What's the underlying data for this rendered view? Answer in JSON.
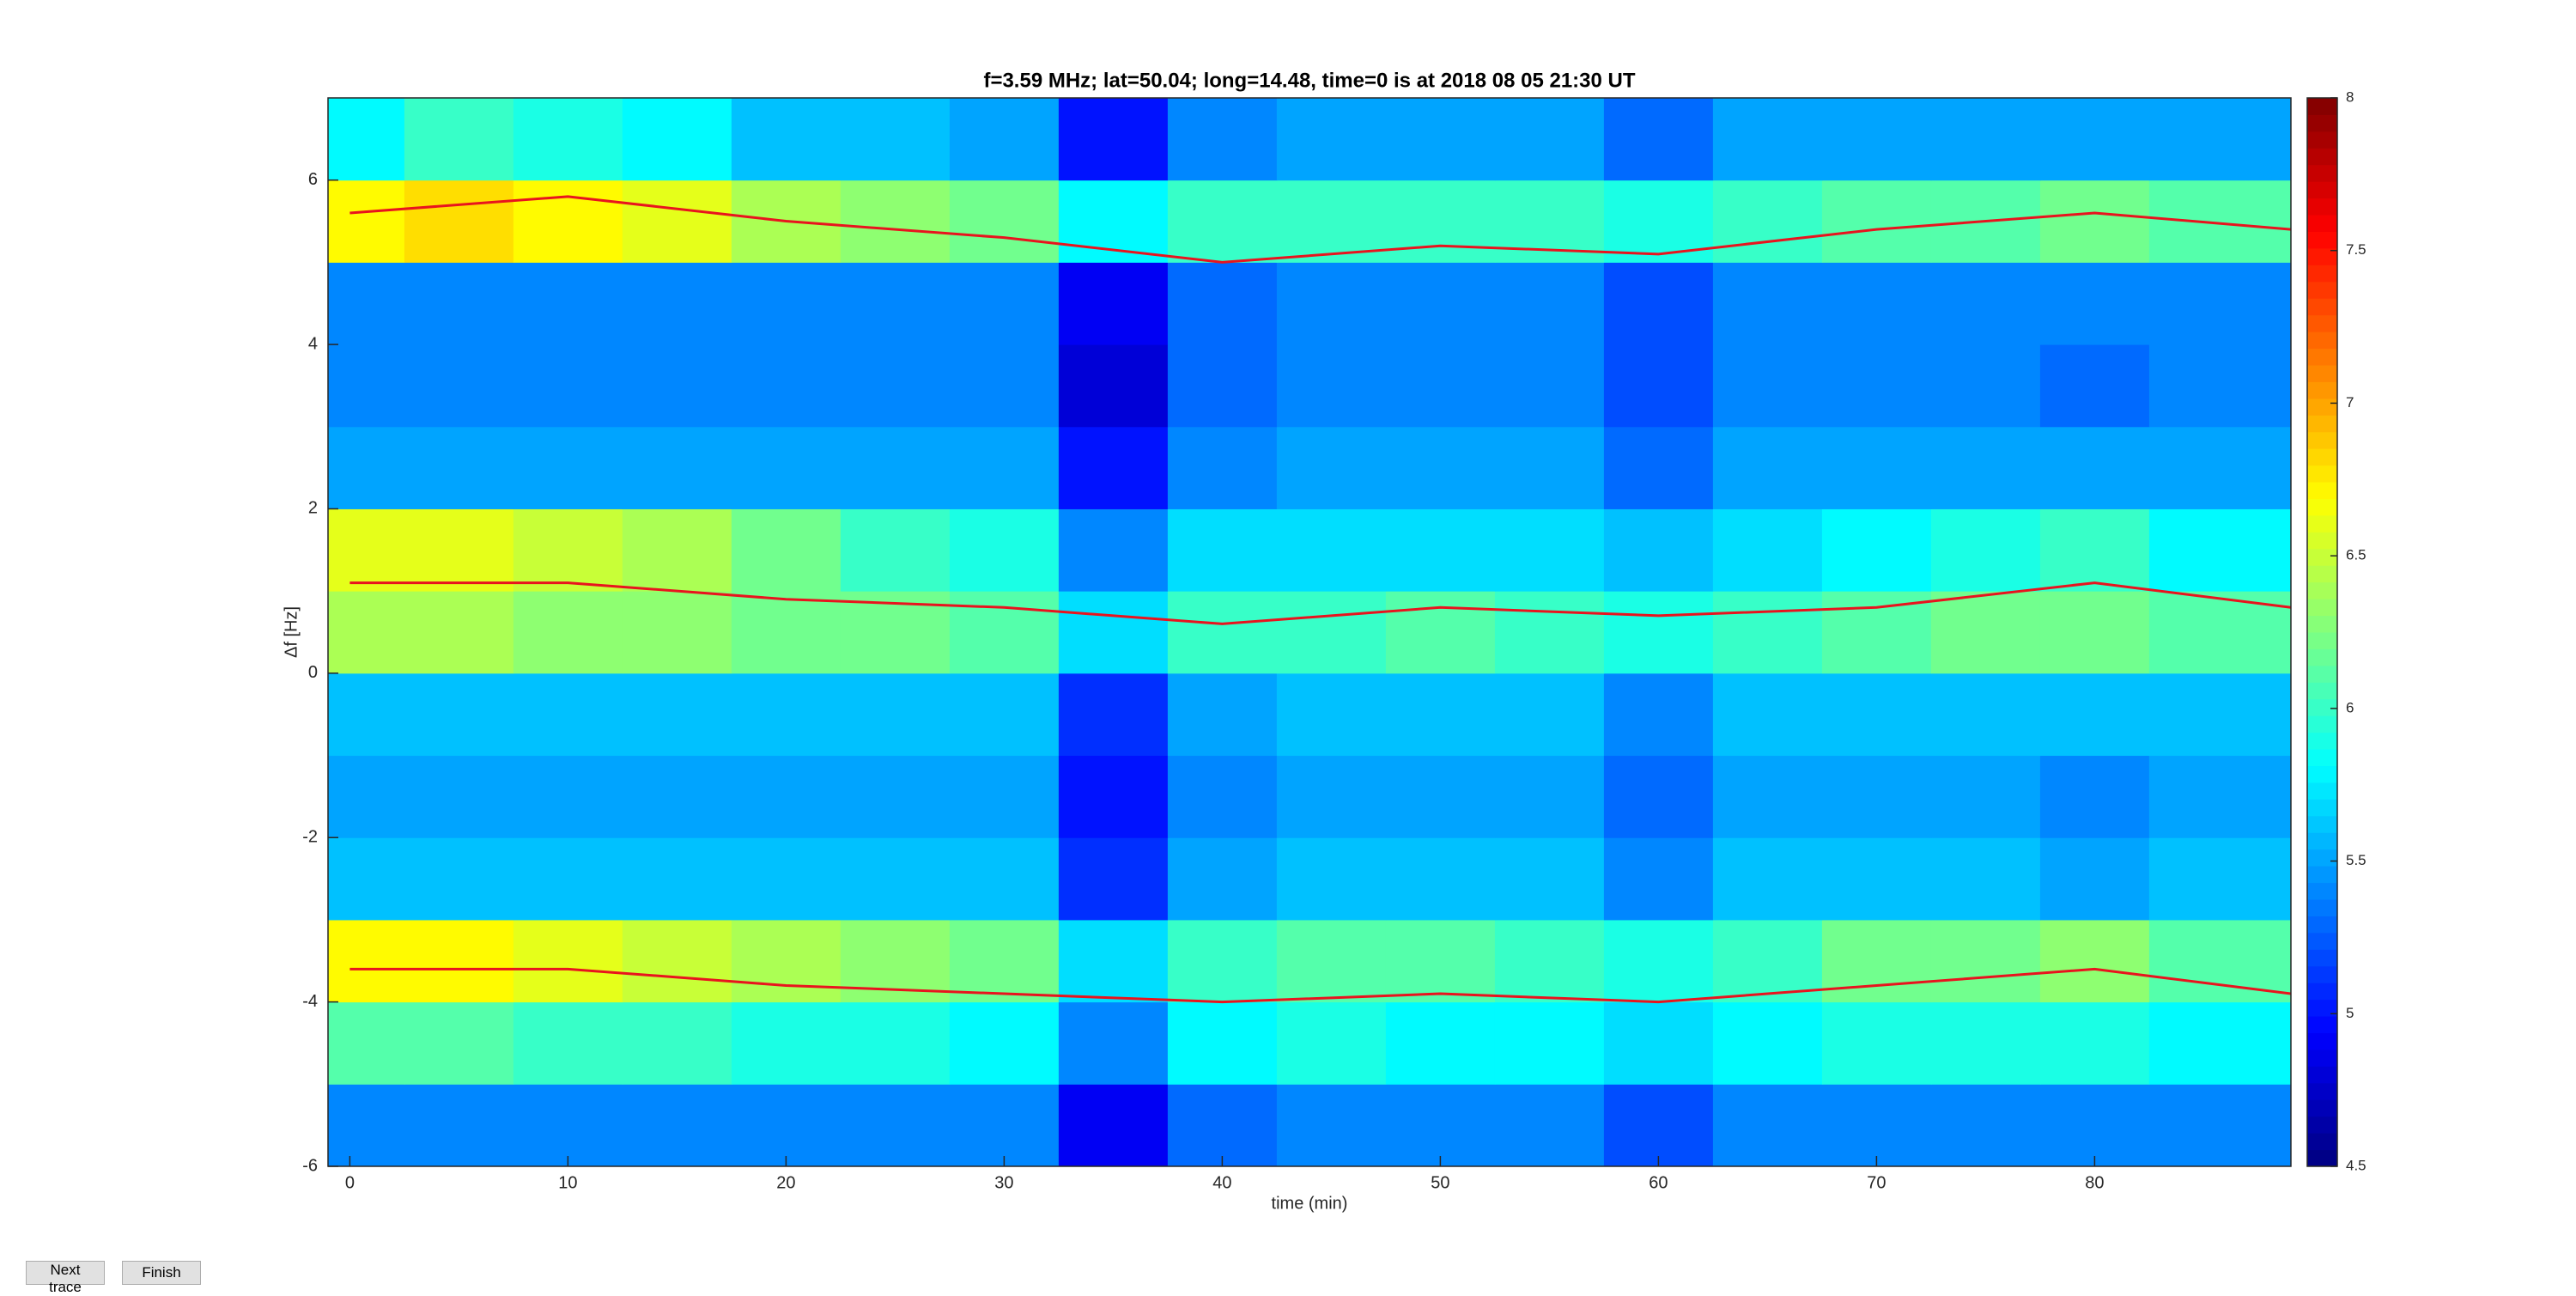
{
  "chart_data": {
    "type": "heatmap",
    "title": "f=3.59 MHz;  lat=50.04; long=14.48, time=0 is at 2018 08 05 21:30 UT",
    "xlabel": "time (min)",
    "ylabel": "Δf [Hz]",
    "x": [
      0,
      5,
      10,
      15,
      20,
      25,
      30,
      35,
      40,
      45,
      50,
      55,
      60,
      65,
      70,
      75,
      80,
      85
    ],
    "y": [
      -5.5,
      -4.5,
      -3.5,
      -2.5,
      -1.5,
      -0.5,
      0.5,
      1.5,
      2.5,
      3.5,
      4.5,
      5.5,
      6.5
    ],
    "z": [
      [
        5.4,
        5.4,
        5.4,
        5.4,
        5.4,
        5.4,
        5.4,
        4.9,
        5.3,
        5.4,
        5.4,
        5.4,
        5.2,
        5.4,
        5.4,
        5.4,
        5.4,
        5.4
      ],
      [
        6.1,
        6.1,
        6.0,
        6.0,
        5.9,
        5.9,
        5.8,
        5.4,
        5.8,
        5.9,
        5.8,
        5.8,
        5.7,
        5.8,
        5.9,
        5.9,
        5.9,
        5.8
      ],
      [
        6.7,
        6.7,
        6.6,
        6.5,
        6.4,
        6.3,
        6.2,
        5.7,
        6.0,
        6.1,
        6.1,
        6.0,
        5.9,
        6.0,
        6.2,
        6.2,
        6.3,
        6.1
      ],
      [
        5.6,
        5.6,
        5.6,
        5.6,
        5.6,
        5.6,
        5.6,
        5.1,
        5.5,
        5.6,
        5.6,
        5.6,
        5.4,
        5.6,
        5.6,
        5.6,
        5.5,
        5.6
      ],
      [
        5.5,
        5.5,
        5.5,
        5.5,
        5.5,
        5.5,
        5.5,
        5.0,
        5.4,
        5.5,
        5.5,
        5.5,
        5.3,
        5.5,
        5.5,
        5.5,
        5.4,
        5.5
      ],
      [
        5.6,
        5.6,
        5.6,
        5.6,
        5.6,
        5.6,
        5.6,
        5.1,
        5.5,
        5.6,
        5.6,
        5.6,
        5.4,
        5.6,
        5.6,
        5.6,
        5.6,
        5.6
      ],
      [
        6.4,
        6.4,
        6.3,
        6.3,
        6.2,
        6.2,
        6.1,
        5.7,
        6.0,
        6.0,
        6.1,
        6.0,
        5.9,
        6.0,
        6.1,
        6.2,
        6.2,
        6.1
      ],
      [
        6.6,
        6.6,
        6.5,
        6.4,
        6.2,
        6.0,
        5.9,
        5.4,
        5.7,
        5.7,
        5.7,
        5.7,
        5.6,
        5.7,
        5.8,
        5.9,
        6.0,
        5.8
      ],
      [
        5.5,
        5.5,
        5.5,
        5.5,
        5.5,
        5.5,
        5.5,
        5.0,
        5.4,
        5.5,
        5.5,
        5.5,
        5.3,
        5.5,
        5.5,
        5.5,
        5.5,
        5.5
      ],
      [
        5.4,
        5.4,
        5.4,
        5.4,
        5.4,
        5.4,
        5.4,
        4.8,
        5.3,
        5.4,
        5.4,
        5.4,
        5.2,
        5.4,
        5.4,
        5.4,
        5.3,
        5.4
      ],
      [
        5.4,
        5.4,
        5.4,
        5.4,
        5.4,
        5.4,
        5.4,
        4.9,
        5.3,
        5.4,
        5.4,
        5.4,
        5.2,
        5.4,
        5.4,
        5.4,
        5.4,
        5.4
      ],
      [
        6.7,
        6.8,
        6.7,
        6.6,
        6.4,
        6.3,
        6.2,
        5.8,
        6.0,
        6.0,
        6.0,
        6.0,
        5.9,
        6.0,
        6.1,
        6.1,
        6.2,
        6.1
      ],
      [
        5.8,
        6.0,
        5.9,
        5.8,
        5.6,
        5.6,
        5.5,
        5.0,
        5.4,
        5.5,
        5.5,
        5.5,
        5.3,
        5.5,
        5.5,
        5.5,
        5.5,
        5.5
      ]
    ],
    "clim": [
      4.5,
      8
    ],
    "cticks": [
      4.5,
      5,
      5.5,
      6,
      6.5,
      7,
      7.5,
      8
    ],
    "colormap": "jet",
    "series": [
      {
        "x": [
          0,
          10,
          20,
          30,
          40,
          50,
          60,
          70,
          80,
          89
        ],
        "values": [
          5.6,
          5.8,
          5.5,
          5.3,
          5.0,
          5.2,
          5.1,
          5.4,
          5.6,
          5.4
        ],
        "color": "#e8141e"
      },
      {
        "x": [
          0,
          10,
          20,
          30,
          40,
          50,
          60,
          70,
          80,
          89
        ],
        "values": [
          1.1,
          1.1,
          0.9,
          0.8,
          0.6,
          0.8,
          0.7,
          0.8,
          1.1,
          0.8
        ],
        "color": "#e8141e"
      },
      {
        "x": [
          0,
          10,
          20,
          30,
          40,
          50,
          60,
          70,
          80,
          89
        ],
        "values": [
          -3.6,
          -3.6,
          -3.8,
          -3.9,
          -4.0,
          -3.9,
          -4.0,
          -3.8,
          -3.6,
          -3.9
        ],
        "color": "#e8141e"
      }
    ],
    "xlim": [
      -1,
      89
    ],
    "ylim": [
      -6,
      7
    ],
    "xticks": [
      0,
      10,
      20,
      30,
      40,
      50,
      60,
      70,
      80
    ],
    "yticks": [
      -6,
      -4,
      -2,
      0,
      2,
      4,
      6
    ]
  },
  "buttons": [
    "Next trace",
    "Finish"
  ]
}
